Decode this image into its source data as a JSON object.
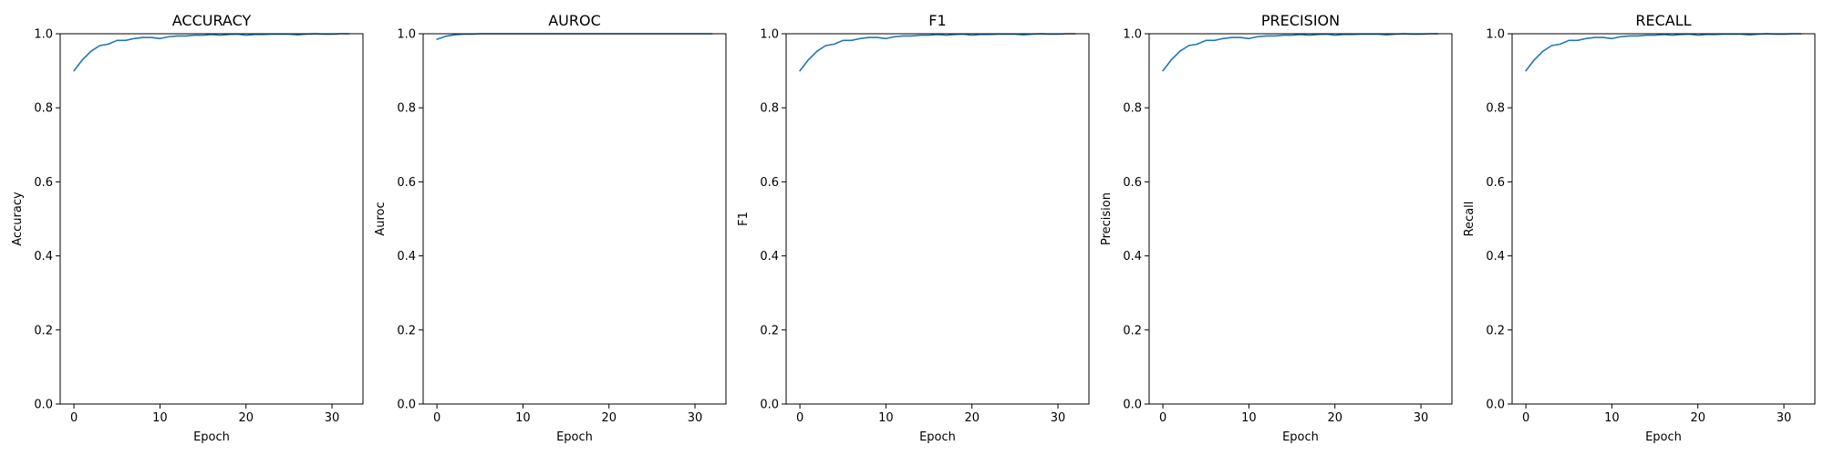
{
  "chart_data": [
    {
      "type": "line",
      "title": "ACCURACY",
      "xlabel": "Epoch",
      "ylabel": "Accuracy",
      "xlim": [
        -1.6,
        33.6
      ],
      "ylim": [
        0.0,
        1.0
      ],
      "xticks": [
        0,
        10,
        20,
        30
      ],
      "xtick_labels": [
        "0",
        "10",
        "20",
        "30"
      ],
      "yticks": [
        0.0,
        0.2,
        0.4,
        0.6,
        0.8,
        1.0
      ],
      "ytick_labels": [
        "0.0",
        "0.2",
        "0.4",
        "0.6",
        "0.8",
        "1.0"
      ],
      "grid": false,
      "color": "#1f77b4",
      "series": [
        {
          "x": [
            0,
            1,
            2,
            3,
            4,
            5,
            6,
            7,
            8,
            9,
            10,
            11,
            12,
            13,
            14,
            15,
            16,
            17,
            18,
            19,
            20,
            21,
            22,
            23,
            24,
            25,
            26,
            27,
            28,
            29,
            30,
            31,
            32
          ],
          "values": [
            0.9,
            0.93,
            0.953,
            0.968,
            0.972,
            0.982,
            0.982,
            0.987,
            0.99,
            0.99,
            0.987,
            0.992,
            0.994,
            0.994,
            0.996,
            0.996,
            0.998,
            0.996,
            0.998,
            0.999,
            0.996,
            0.998,
            0.998,
            0.999,
            0.999,
            0.999,
            0.997,
            0.999,
            1.0,
            0.999,
            0.999,
            1.0,
            1.0
          ]
        }
      ]
    },
    {
      "type": "line",
      "title": "AUROC",
      "xlabel": "Epoch",
      "ylabel": "Auroc",
      "xlim": [
        -1.6,
        33.6
      ],
      "ylim": [
        0.0,
        1.0
      ],
      "xticks": [
        0,
        10,
        20,
        30
      ],
      "xtick_labels": [
        "0",
        "10",
        "20",
        "30"
      ],
      "yticks": [
        0.0,
        0.2,
        0.4,
        0.6,
        0.8,
        1.0
      ],
      "ytick_labels": [
        "0.0",
        "0.2",
        "0.4",
        "0.6",
        "0.8",
        "1.0"
      ],
      "grid": false,
      "color": "#1f77b4",
      "series": [
        {
          "x": [
            0,
            1,
            2,
            3,
            4,
            5,
            6,
            7,
            8,
            9,
            10,
            11,
            12,
            13,
            14,
            15,
            16,
            17,
            18,
            19,
            20,
            21,
            22,
            23,
            24,
            25,
            26,
            27,
            28,
            29,
            30,
            31,
            32
          ],
          "values": [
            0.985,
            0.993,
            0.997,
            0.999,
            0.999,
            1.0,
            1.0,
            1.0,
            1.0,
            1.0,
            1.0,
            1.0,
            1.0,
            1.0,
            1.0,
            1.0,
            1.0,
            1.0,
            1.0,
            1.0,
            1.0,
            1.0,
            1.0,
            1.0,
            1.0,
            1.0,
            1.0,
            1.0,
            1.0,
            1.0,
            1.0,
            1.0,
            1.0
          ]
        }
      ]
    },
    {
      "type": "line",
      "title": "F1",
      "xlabel": "Epoch",
      "ylabel": "F1",
      "xlim": [
        -1.6,
        33.6
      ],
      "ylim": [
        0.0,
        1.0
      ],
      "xticks": [
        0,
        10,
        20,
        30
      ],
      "xtick_labels": [
        "0",
        "10",
        "20",
        "30"
      ],
      "yticks": [
        0.0,
        0.2,
        0.4,
        0.6,
        0.8,
        1.0
      ],
      "ytick_labels": [
        "0.0",
        "0.2",
        "0.4",
        "0.6",
        "0.8",
        "1.0"
      ],
      "grid": false,
      "color": "#1f77b4",
      "series": [
        {
          "x": [
            0,
            1,
            2,
            3,
            4,
            5,
            6,
            7,
            8,
            9,
            10,
            11,
            12,
            13,
            14,
            15,
            16,
            17,
            18,
            19,
            20,
            21,
            22,
            23,
            24,
            25,
            26,
            27,
            28,
            29,
            30,
            31,
            32
          ],
          "values": [
            0.9,
            0.93,
            0.953,
            0.968,
            0.972,
            0.982,
            0.982,
            0.987,
            0.99,
            0.99,
            0.987,
            0.992,
            0.994,
            0.994,
            0.996,
            0.996,
            0.998,
            0.996,
            0.998,
            0.999,
            0.996,
            0.998,
            0.998,
            0.999,
            0.999,
            0.999,
            0.997,
            0.999,
            1.0,
            0.999,
            0.999,
            1.0,
            1.0
          ]
        }
      ]
    },
    {
      "type": "line",
      "title": "PRECISION",
      "xlabel": "Epoch",
      "ylabel": "Precision",
      "xlim": [
        -1.6,
        33.6
      ],
      "ylim": [
        0.0,
        1.0
      ],
      "xticks": [
        0,
        10,
        20,
        30
      ],
      "xtick_labels": [
        "0",
        "10",
        "20",
        "30"
      ],
      "yticks": [
        0.0,
        0.2,
        0.4,
        0.6,
        0.8,
        1.0
      ],
      "ytick_labels": [
        "0.0",
        "0.2",
        "0.4",
        "0.6",
        "0.8",
        "1.0"
      ],
      "grid": false,
      "color": "#1f77b4",
      "series": [
        {
          "x": [
            0,
            1,
            2,
            3,
            4,
            5,
            6,
            7,
            8,
            9,
            10,
            11,
            12,
            13,
            14,
            15,
            16,
            17,
            18,
            19,
            20,
            21,
            22,
            23,
            24,
            25,
            26,
            27,
            28,
            29,
            30,
            31,
            32
          ],
          "values": [
            0.9,
            0.93,
            0.953,
            0.968,
            0.972,
            0.982,
            0.982,
            0.987,
            0.99,
            0.99,
            0.987,
            0.992,
            0.994,
            0.994,
            0.996,
            0.996,
            0.998,
            0.996,
            0.998,
            0.999,
            0.996,
            0.998,
            0.998,
            0.999,
            0.999,
            0.999,
            0.997,
            0.999,
            1.0,
            0.999,
            0.999,
            1.0,
            1.0
          ]
        }
      ]
    },
    {
      "type": "line",
      "title": "RECALL",
      "xlabel": "Epoch",
      "ylabel": "Recall",
      "xlim": [
        -1.6,
        33.6
      ],
      "ylim": [
        0.0,
        1.0
      ],
      "xticks": [
        0,
        10,
        20,
        30
      ],
      "xtick_labels": [
        "0",
        "10",
        "20",
        "30"
      ],
      "yticks": [
        0.0,
        0.2,
        0.4,
        0.6,
        0.8,
        1.0
      ],
      "ytick_labels": [
        "0.0",
        "0.2",
        "0.4",
        "0.6",
        "0.8",
        "1.0"
      ],
      "grid": false,
      "color": "#1f77b4",
      "series": [
        {
          "x": [
            0,
            1,
            2,
            3,
            4,
            5,
            6,
            7,
            8,
            9,
            10,
            11,
            12,
            13,
            14,
            15,
            16,
            17,
            18,
            19,
            20,
            21,
            22,
            23,
            24,
            25,
            26,
            27,
            28,
            29,
            30,
            31,
            32
          ],
          "values": [
            0.9,
            0.93,
            0.953,
            0.968,
            0.972,
            0.982,
            0.982,
            0.987,
            0.99,
            0.99,
            0.987,
            0.992,
            0.994,
            0.994,
            0.996,
            0.996,
            0.998,
            0.996,
            0.998,
            0.999,
            0.996,
            0.998,
            0.998,
            0.999,
            0.999,
            0.999,
            0.997,
            0.999,
            1.0,
            0.999,
            0.999,
            1.0,
            1.0
          ]
        }
      ]
    }
  ]
}
